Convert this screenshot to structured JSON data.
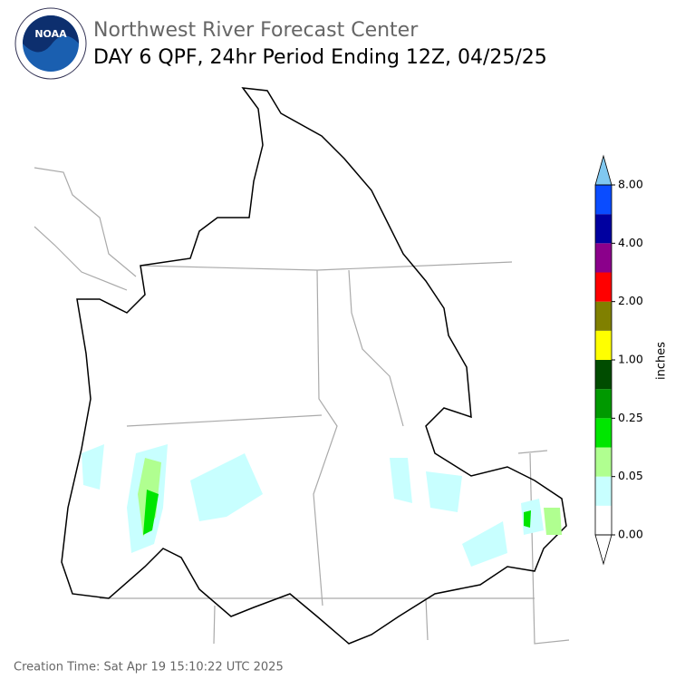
{
  "header": {
    "agency": "Northwest River Forecast Center",
    "title": "DAY 6 QPF, 24hr Period Ending 12Z, 04/25/25",
    "logo": "NOAA"
  },
  "colorbar": {
    "label": "inches",
    "ticks": [
      "0.00",
      "0.05",
      "0.25",
      "1.00",
      "2.00",
      "4.00",
      "8.00"
    ],
    "colors": [
      "#ffffff",
      "#c8ffff",
      "#b0ff90",
      "#00e600",
      "#009900",
      "#004c00",
      "#ffff00",
      "#808000",
      "#ff0000",
      "#8b008b",
      "#0000a0",
      "#0a4cff"
    ],
    "over_color": "#80c8f0",
    "under_color": "#ffffff"
  },
  "footer": {
    "creation": "Creation Time: Sat Apr 19 15:10:22 UTC 2025"
  }
}
